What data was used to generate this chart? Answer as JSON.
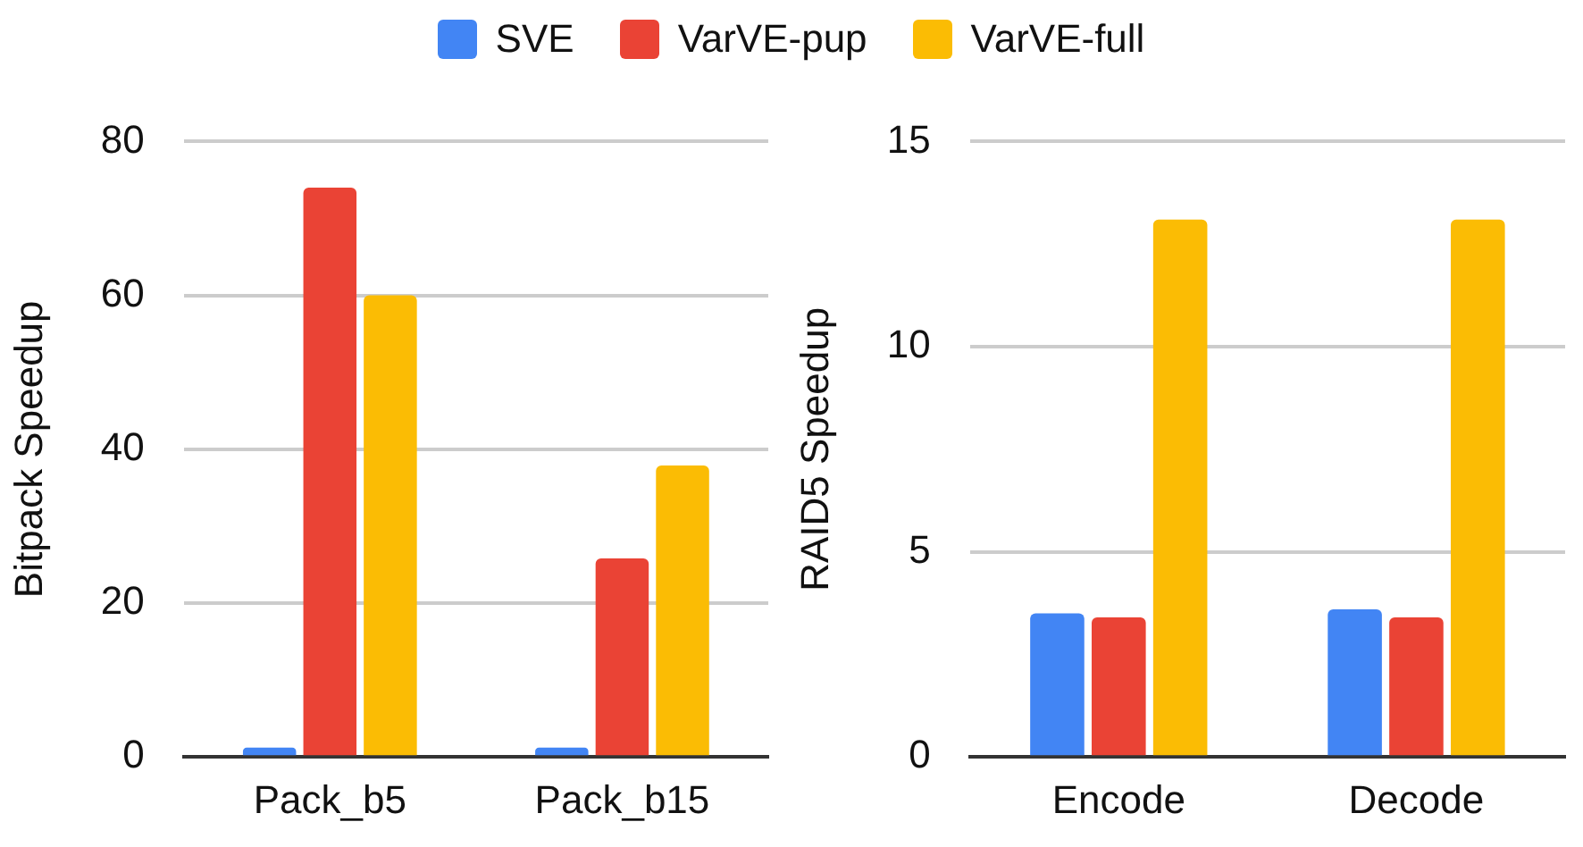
{
  "chart_data": [
    {
      "type": "bar",
      "ylabel": "Bitpack Speedup",
      "categories": [
        "Pack_b5",
        "Pack_b15"
      ],
      "series": [
        {
          "name": "SVE",
          "color": "#4285f4",
          "values": [
            1.2,
            1.2
          ]
        },
        {
          "name": "VarVE-pup",
          "color": "#ea4335",
          "values": [
            74,
            25.8
          ]
        },
        {
          "name": "VarVE-full",
          "color": "#fbbc04",
          "values": [
            60,
            37.9
          ]
        }
      ],
      "ylim": [
        0,
        80
      ],
      "yticks": [
        0,
        20,
        40,
        60,
        80
      ],
      "grid": "y",
      "legend": "top"
    },
    {
      "type": "bar",
      "ylabel": "RAID5 Speedup",
      "categories": [
        "Encode",
        "Decode"
      ],
      "series": [
        {
          "color": "#4285f4",
          "values": [
            3.5,
            3.6
          ]
        },
        {
          "color": "#ea4335",
          "values": [
            3.4,
            3.4
          ]
        },
        {
          "color": "#fbbc04",
          "values": [
            13.1,
            13.1
          ]
        }
      ],
      "ylim": [
        0,
        15
      ],
      "yticks": [
        0,
        5,
        10,
        15
      ],
      "grid": "y"
    }
  ]
}
